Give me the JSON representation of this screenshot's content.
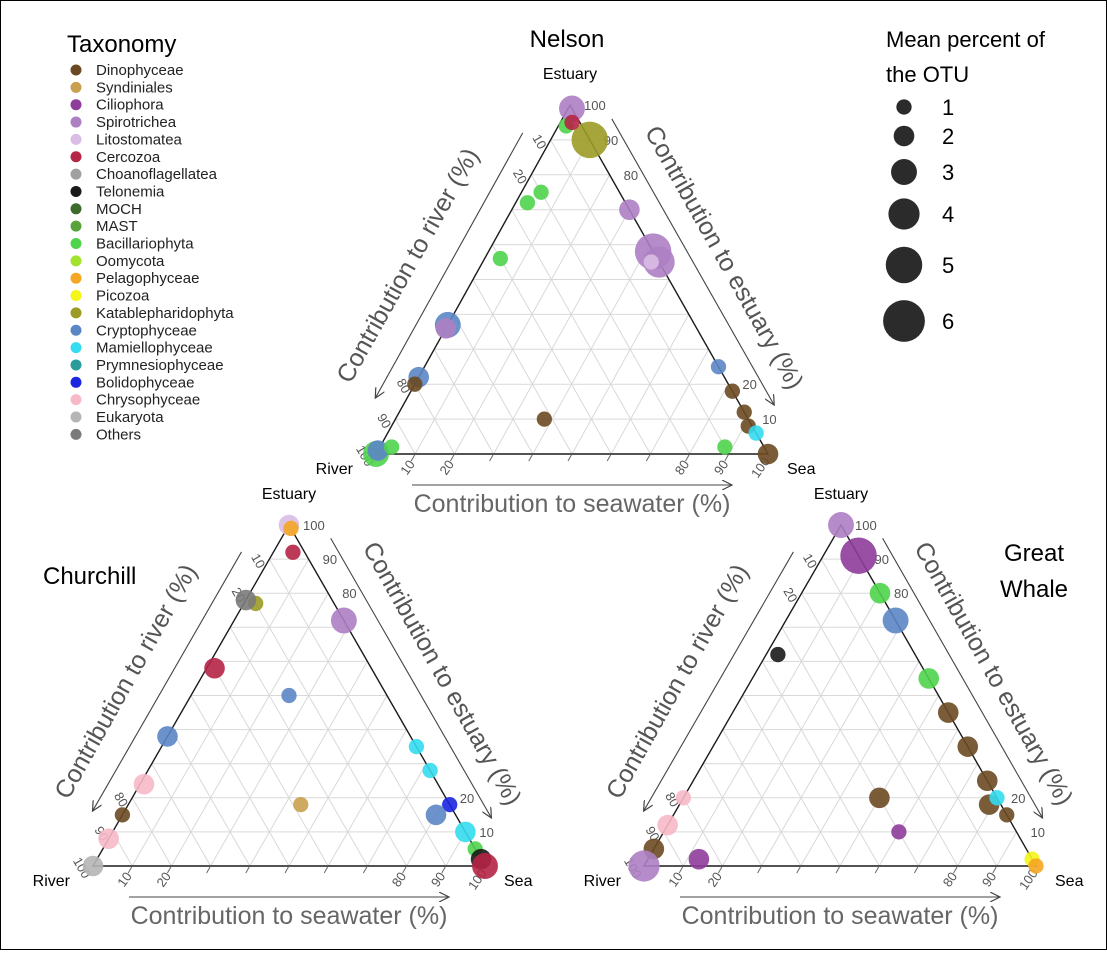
{
  "legend": {
    "title": "Taxonomy",
    "items": [
      {
        "label": "Dinophyceae",
        "color": "#6b4a23"
      },
      {
        "label": "Syndiniales",
        "color": "#c9a04e"
      },
      {
        "label": "Ciliophora",
        "color": "#8e3d9a"
      },
      {
        "label": "Spirotrichea",
        "color": "#ad7fc3"
      },
      {
        "label": "Litostomatea",
        "color": "#d9bde6"
      },
      {
        "label": "Cercozoa",
        "color": "#b52546"
      },
      {
        "label": "Choanoflagellatea",
        "color": "#a0a0a0"
      },
      {
        "label": "Telonemia",
        "color": "#1a1a1a"
      },
      {
        "label": "MOCH",
        "color": "#3d6b2c"
      },
      {
        "label": "MAST",
        "color": "#59a33f"
      },
      {
        "label": "Bacillariophyta",
        "color": "#4fd34b"
      },
      {
        "label": "Oomycota",
        "color": "#a2e22d"
      },
      {
        "label": "Pelagophyceae",
        "color": "#f5a623"
      },
      {
        "label": "Picozoa",
        "color": "#f5f519"
      },
      {
        "label": "Katablepharidophyta",
        "color": "#9b9b26"
      },
      {
        "label": "Cryptophyceae",
        "color": "#5b86c4"
      },
      {
        "label": "Mamiellophyceae",
        "color": "#34dcf0"
      },
      {
        "label": "Prymnesiophyceae",
        "color": "#2a9c9c"
      },
      {
        "label": "Bolidophyceae",
        "color": "#1c26e0"
      },
      {
        "label": "Chrysophyceae",
        "color": "#f7b8c8"
      },
      {
        "label": "Eukaryota",
        "color": "#b5b5b5"
      },
      {
        "label": "Others",
        "color": "#7a7a7a"
      }
    ]
  },
  "size_legend": {
    "title_line1": "Mean percent of",
    "title_line2": "the OTU",
    "values": [
      "1",
      "2",
      "3",
      "4",
      "5",
      "6"
    ]
  },
  "chart_data": [
    {
      "type": "scatter",
      "subtype": "ternary",
      "title": "Nelson",
      "vertices": {
        "top": "Estuary",
        "left": "River",
        "right": "Sea"
      },
      "axis_labels": {
        "left": "Contribution to  river (%)",
        "right": "Contribution to estuary (%)",
        "bottom": "Contribution to seawater (%)"
      },
      "ticks": {
        "left": [
          "10",
          "20",
          "80",
          "90",
          "100"
        ],
        "right": [
          "100",
          "90",
          "80",
          "20",
          "10"
        ],
        "bottom": [
          "10",
          "20",
          "80",
          "90",
          "100"
        ]
      },
      "points": [
        {
          "taxon": "Spirotrichea",
          "river": 0,
          "estuary": 99,
          "sea": 1,
          "size": 3
        },
        {
          "taxon": "Katablepharidophyta",
          "river": 0,
          "estuary": 90,
          "sea": 10,
          "size": 5
        },
        {
          "taxon": "Bacillariophyta",
          "river": 4,
          "estuary": 94,
          "sea": 2,
          "size": 1
        },
        {
          "taxon": "Cercozoa",
          "river": 2,
          "estuary": 95,
          "sea": 3,
          "size": 1
        },
        {
          "taxon": "Spirotrichea",
          "river": 0,
          "estuary": 70,
          "sea": 30,
          "size": 2
        },
        {
          "taxon": "Spirotrichea",
          "river": 0,
          "estuary": 58,
          "sea": 42,
          "size": 5
        },
        {
          "taxon": "Spirotrichea",
          "river": 0,
          "estuary": 55,
          "sea": 45,
          "size": 4
        },
        {
          "taxon": "Litostomatea",
          "river": 2,
          "estuary": 55,
          "sea": 43,
          "size": 1
        },
        {
          "taxon": "Cryptophyceae",
          "river": 0,
          "estuary": 25,
          "sea": 75,
          "size": 1
        },
        {
          "taxon": "Dinophyceae",
          "river": 0,
          "estuary": 18,
          "sea": 82,
          "size": 1
        },
        {
          "taxon": "Dinophyceae",
          "river": 0,
          "estuary": 12,
          "sea": 88,
          "size": 1
        },
        {
          "taxon": "Dinophyceae",
          "river": 1,
          "estuary": 8,
          "sea": 91,
          "size": 1
        },
        {
          "taxon": "Mamiellophyceae",
          "river": 0,
          "estuary": 6,
          "sea": 94,
          "size": 1
        },
        {
          "taxon": "Dinophyceae",
          "river": 0,
          "estuary": 0,
          "sea": 100,
          "size": 2
        },
        {
          "taxon": "Bacillariophyta",
          "river": 20,
          "estuary": 75,
          "sea": 5,
          "size": 1
        },
        {
          "taxon": "Bacillariophyta",
          "river": 25,
          "estuary": 72,
          "sea": 3,
          "size": 1
        },
        {
          "taxon": "Bacillariophyta",
          "river": 40,
          "estuary": 56,
          "sea": 4,
          "size": 1
        },
        {
          "taxon": "Cryptophyceae",
          "river": 63,
          "estuary": 37,
          "sea": 0,
          "size": 3
        },
        {
          "taxon": "Spirotrichea",
          "river": 64,
          "estuary": 36,
          "sea": 0,
          "size": 2
        },
        {
          "taxon": "Cryptophyceae",
          "river": 78,
          "estuary": 22,
          "sea": 0,
          "size": 2
        },
        {
          "taxon": "Dinophyceae",
          "river": 80,
          "estuary": 20,
          "sea": 0,
          "size": 1
        },
        {
          "taxon": "Bacillariophyta",
          "river": 100,
          "estuary": 0,
          "sea": 0,
          "size": 3
        },
        {
          "taxon": "Cryptophyceae",
          "river": 99,
          "estuary": 1,
          "sea": 0,
          "size": 2
        },
        {
          "taxon": "Dinophyceae",
          "river": 52,
          "estuary": 10,
          "sea": 38,
          "size": 1
        },
        {
          "taxon": "Bacillariophyta",
          "river": 10,
          "estuary": 2,
          "sea": 88,
          "size": 1
        },
        {
          "taxon": "Bacillariophyta",
          "river": 95,
          "estuary": 2,
          "sea": 3,
          "size": 1
        }
      ]
    },
    {
      "type": "scatter",
      "subtype": "ternary",
      "title": "Churchill",
      "vertices": {
        "top": "Estuary",
        "left": "River",
        "right": "Sea"
      },
      "axis_labels": {
        "left": "Contribution to  river (%)",
        "right": "Contribution to estuary (%)",
        "bottom": "Contribution to seawater (%)"
      },
      "ticks": {
        "left": [
          "10",
          "20",
          "80",
          "90",
          "100"
        ],
        "right": [
          "100",
          "90",
          "80",
          "20",
          "10"
        ],
        "bottom": [
          "10",
          "20",
          "80",
          "90",
          "100"
        ]
      },
      "points": [
        {
          "taxon": "Litostomatea",
          "river": 0,
          "estuary": 100,
          "sea": 0,
          "size": 2
        },
        {
          "taxon": "Pelagophyceae",
          "river": 0,
          "estuary": 99,
          "sea": 1,
          "size": 1
        },
        {
          "taxon": "Cercozoa",
          "river": 3,
          "estuary": 92,
          "sea": 5,
          "size": 1
        },
        {
          "taxon": "Spirotrichea",
          "river": 0,
          "estuary": 72,
          "sea": 28,
          "size": 3
        },
        {
          "taxon": "Mamiellophyceae",
          "river": 0,
          "estuary": 35,
          "sea": 65,
          "size": 1
        },
        {
          "taxon": "Mamiellophyceae",
          "river": 0,
          "estuary": 28,
          "sea": 72,
          "size": 1
        },
        {
          "taxon": "Bolidophyceae",
          "river": 0,
          "estuary": 18,
          "sea": 82,
          "size": 1
        },
        {
          "taxon": "Cryptophyceae",
          "river": 5,
          "estuary": 15,
          "sea": 80,
          "size": 2
        },
        {
          "taxon": "Mamiellophyceae",
          "river": 0,
          "estuary": 10,
          "sea": 90,
          "size": 2
        },
        {
          "taxon": "Bacillariophyta",
          "river": 0,
          "estuary": 5,
          "sea": 95,
          "size": 1
        },
        {
          "taxon": "Telonemia",
          "river": 0,
          "estuary": 2,
          "sea": 98,
          "size": 2
        },
        {
          "taxon": "Cercozoa",
          "river": 0,
          "estuary": 0,
          "sea": 100,
          "size": 3
        },
        {
          "taxon": "Katablepharidophyta",
          "river": 20,
          "estuary": 77,
          "sea": 3,
          "size": 1
        },
        {
          "taxon": "Others",
          "river": 22,
          "estuary": 78,
          "sea": 0,
          "size": 2
        },
        {
          "taxon": "Cercozoa",
          "river": 40,
          "estuary": 58,
          "sea": 2,
          "size": 2
        },
        {
          "taxon": "Cryptophyceae",
          "river": 62,
          "estuary": 38,
          "sea": 0,
          "size": 2
        },
        {
          "taxon": "Chrysophyceae",
          "river": 75,
          "estuary": 24,
          "sea": 1,
          "size": 2
        },
        {
          "taxon": "Dinophyceae",
          "river": 85,
          "estuary": 15,
          "sea": 0,
          "size": 1
        },
        {
          "taxon": "Chrysophyceae",
          "river": 92,
          "estuary": 8,
          "sea": 0,
          "size": 2
        },
        {
          "taxon": "Eukaryota",
          "river": 100,
          "estuary": 0,
          "sea": 0,
          "size": 2
        },
        {
          "taxon": "Syndiniales",
          "river": 38,
          "estuary": 18,
          "sea": 44,
          "size": 1
        },
        {
          "taxon": "Cryptophyceae",
          "river": 25,
          "estuary": 50,
          "sea": 25,
          "size": 1
        }
      ]
    },
    {
      "type": "scatter",
      "subtype": "ternary",
      "title": "Great Whale",
      "vertices": {
        "top": "Estuary",
        "left": "River",
        "right": "Sea"
      },
      "axis_labels": {
        "left": "Contribution to  river (%)",
        "right": "Contribution to estuary (%)",
        "bottom": "Contribution to seawater (%)"
      },
      "ticks": {
        "left": [
          "10",
          "20",
          "80",
          "90",
          "100"
        ],
        "right": [
          "100",
          "90",
          "80",
          "20",
          "10"
        ],
        "bottom": [
          "10",
          "20",
          "80",
          "90",
          "100"
        ]
      },
      "points": [
        {
          "taxon": "Spirotrichea",
          "river": 0,
          "estuary": 100,
          "sea": 0,
          "size": 3
        },
        {
          "taxon": "Ciliophora",
          "river": 0,
          "estuary": 91,
          "sea": 9,
          "size": 5
        },
        {
          "taxon": "Bacillariophyta",
          "river": 0,
          "estuary": 80,
          "sea": 20,
          "size": 2
        },
        {
          "taxon": "Cryptophyceae",
          "river": 0,
          "estuary": 72,
          "sea": 28,
          "size": 3
        },
        {
          "taxon": "Bacillariophyta",
          "river": 0,
          "estuary": 55,
          "sea": 45,
          "size": 2
        },
        {
          "taxon": "Dinophyceae",
          "river": 0,
          "estuary": 45,
          "sea": 55,
          "size": 2
        },
        {
          "taxon": "Dinophyceae",
          "river": 0,
          "estuary": 35,
          "sea": 65,
          "size": 2
        },
        {
          "taxon": "Dinophyceae",
          "river": 0,
          "estuary": 25,
          "sea": 75,
          "size": 2
        },
        {
          "taxon": "Dinophyceae",
          "river": 0,
          "estuary": 15,
          "sea": 85,
          "size": 1
        },
        {
          "taxon": "Dinophyceae",
          "river": 3,
          "estuary": 18,
          "sea": 79,
          "size": 2
        },
        {
          "taxon": "Mamiellophyceae",
          "river": 0,
          "estuary": 20,
          "sea": 80,
          "size": 1
        },
        {
          "taxon": "Picozoa",
          "river": 0,
          "estuary": 2,
          "sea": 98,
          "size": 1
        },
        {
          "taxon": "Pelagophyceae",
          "river": 0,
          "estuary": 0,
          "sea": 100,
          "size": 1
        },
        {
          "taxon": "Dinophyceae",
          "river": 30,
          "estuary": 20,
          "sea": 50,
          "size": 2
        },
        {
          "taxon": "Ciliophora",
          "river": 30,
          "estuary": 10,
          "sea": 60,
          "size": 1
        },
        {
          "taxon": "Telonemia",
          "river": 35,
          "estuary": 62,
          "sea": 3,
          "size": 1
        },
        {
          "taxon": "Chrysophyceae",
          "river": 80,
          "estuary": 20,
          "sea": 0,
          "size": 1
        },
        {
          "taxon": "Chrysophyceae",
          "river": 88,
          "estuary": 12,
          "sea": 0,
          "size": 2
        },
        {
          "taxon": "Dinophyceae",
          "river": 95,
          "estuary": 5,
          "sea": 0,
          "size": 2
        },
        {
          "taxon": "Spirotrichea",
          "river": 100,
          "estuary": 0,
          "sea": 0,
          "size": 4
        },
        {
          "taxon": "Ciliophora",
          "river": 85,
          "estuary": 2,
          "sea": 13,
          "size": 2
        }
      ]
    }
  ]
}
